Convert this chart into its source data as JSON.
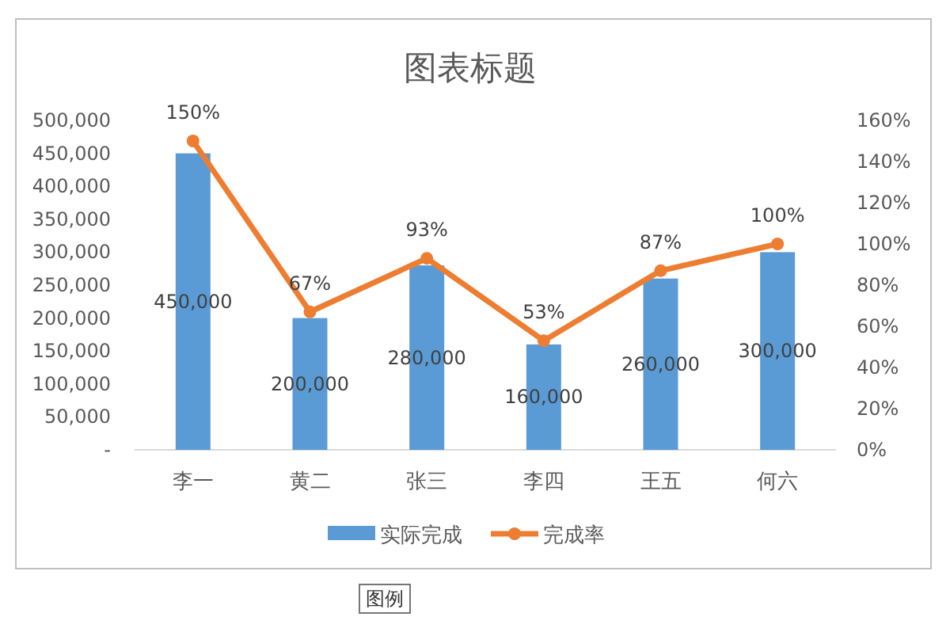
{
  "chart_data": {
    "type": "bar",
    "title": "图表标题",
    "categories": [
      "李一",
      "黄二",
      "张三",
      "李四",
      "王五",
      "何六"
    ],
    "series": [
      {
        "name": "实际完成",
        "color": "#5b9bd5",
        "values": [
          450000,
          200000,
          280000,
          160000,
          260000,
          300000
        ],
        "value_labels": [
          "450,000",
          "200,000",
          "280,000",
          "160,000",
          "260,000",
          "300,000"
        ]
      },
      {
        "name": "完成率",
        "type": "line",
        "axis": "y2",
        "color": "#ed7d31",
        "marker": "circle",
        "values": [
          150,
          67,
          93,
          53,
          87,
          100
        ],
        "value_labels": [
          "150%",
          "67%",
          "93%",
          "53%",
          "87%",
          "100%"
        ]
      }
    ],
    "ylim": [
      0,
      500000
    ],
    "yticks": [
      {
        "value": 0,
        "label": "-"
      },
      {
        "value": 50000,
        "label": "50,000"
      },
      {
        "value": 100000,
        "label": "100,000"
      },
      {
        "value": 150000,
        "label": "150,000"
      },
      {
        "value": 200000,
        "label": "200,000"
      },
      {
        "value": 250000,
        "label": "250,000"
      },
      {
        "value": 300000,
        "label": "300,000"
      },
      {
        "value": 350000,
        "label": "350,000"
      },
      {
        "value": 400000,
        "label": "400,000"
      },
      {
        "value": 450000,
        "label": "450,000"
      },
      {
        "value": 500000,
        "label": "500,000"
      }
    ],
    "y2lim": [
      0,
      160
    ],
    "y2ticks": [
      {
        "value": 0,
        "label": "0%"
      },
      {
        "value": 20,
        "label": "20%"
      },
      {
        "value": 40,
        "label": "40%"
      },
      {
        "value": 60,
        "label": "60%"
      },
      {
        "value": 80,
        "label": "80%"
      },
      {
        "value": 100,
        "label": "100%"
      },
      {
        "value": 120,
        "label": "120%"
      },
      {
        "value": 140,
        "label": "140%"
      },
      {
        "value": 160,
        "label": "160%"
      }
    ],
    "legend": "bottom",
    "annotations": [
      "图例"
    ]
  }
}
